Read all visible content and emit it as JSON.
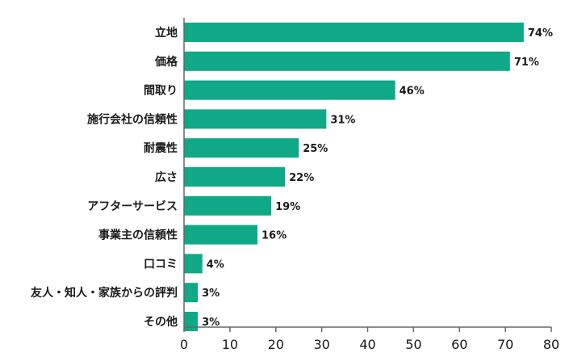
{
  "chart_data": {
    "type": "bar",
    "orientation": "horizontal",
    "categories": [
      "立地",
      "価格",
      "間取り",
      "施行会社の信頼性",
      "耐震性",
      "広さ",
      "アフターサービス",
      "事業主の信頼性",
      "口コミ",
      "友人・知人・家族からの評判",
      "その他"
    ],
    "values": [
      74,
      71,
      46,
      31,
      25,
      22,
      19,
      16,
      4,
      3,
      3
    ],
    "value_labels": [
      "74%",
      "71%",
      "46%",
      "31%",
      "25%",
      "22%",
      "19%",
      "16%",
      "4%",
      "3%",
      "3%"
    ],
    "xlim": [
      0,
      80
    ],
    "xticks": [
      0,
      10,
      20,
      30,
      40,
      50,
      60,
      70,
      80
    ],
    "bar_color": "#0fa987",
    "axis_color": "#666666",
    "grid": false,
    "legend": "none"
  }
}
